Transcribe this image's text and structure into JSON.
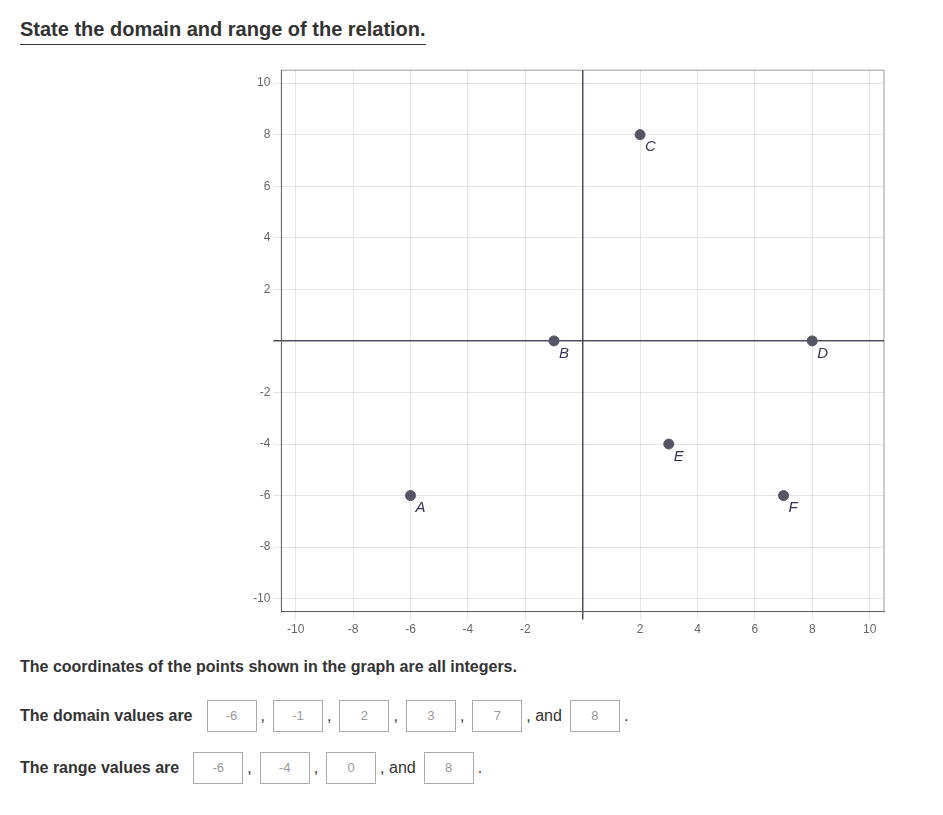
{
  "chart_data": {
    "type": "scatter",
    "title": "State the domain and range of the relation.",
    "subtitle": "The coordinates of the points shown in the graph are all integers.",
    "series": [
      {
        "color": "#555566",
        "x": [
          -6,
          -1,
          2,
          8,
          3,
          7
        ],
        "values": [
          -6,
          0,
          8,
          0,
          -4,
          -6
        ],
        "labels": [
          "A",
          "B",
          "C",
          "D",
          "E",
          "F"
        ]
      }
    ],
    "xlim": [
      -10.5,
      10.5
    ],
    "ylim": [
      -10.5,
      10.5
    ],
    "xticks": [
      -10,
      -8,
      -6,
      -4,
      -2,
      {
        "value": 0,
        "label": null
      },
      2,
      4,
      6,
      8,
      10
    ],
    "yticks": [
      -10,
      -8,
      -6,
      -4,
      -2,
      {
        "value": 0,
        "label": null
      },
      2,
      4,
      6,
      8,
      10
    ],
    "grid": true,
    "annotations": [
      {
        "text": "The domain values are",
        "boxes": [
          "-6",
          "-1",
          "2",
          "3",
          "7",
          "8"
        ],
        "separators": [
          ",",
          ",",
          ",",
          ",",
          ", and",
          "."
        ]
      },
      {
        "text": "The range values are",
        "boxes": [
          "-6",
          "-4",
          "0",
          "8"
        ],
        "separators": [
          ",",
          ",",
          ", and",
          "."
        ]
      }
    ]
  }
}
